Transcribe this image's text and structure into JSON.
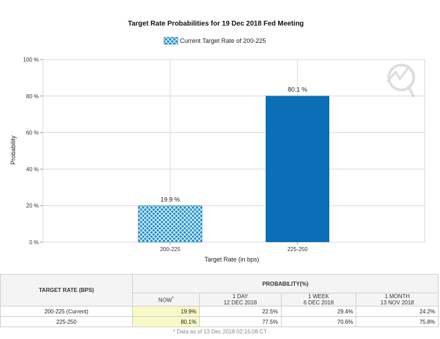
{
  "chart_data": {
    "type": "bar",
    "title": "Target Rate Probabilities for 19 Dec 2018 Fed Meeting",
    "legend": "Current Target Rate of 200-225",
    "xlabel": "Target Rate (in bps)",
    "ylabel": "Probability",
    "categories": [
      "200-225",
      "225-250"
    ],
    "values": [
      19.9,
      80.1
    ],
    "value_labels": [
      "19.9 %",
      "80.1 %"
    ],
    "ylim": [
      0,
      100
    ],
    "yticks": [
      0,
      20,
      40,
      60,
      80,
      100
    ],
    "ytick_labels": [
      "0 %",
      "20 %",
      "40 %",
      "60 %",
      "80 %",
      "100 %"
    ],
    "highlight_category": "200-225",
    "colors": {
      "current": "#1a8fd0",
      "other": "#0a6fb6",
      "grid": "#d8d8d8"
    }
  },
  "table": {
    "target_header": "TARGET RATE (BPS)",
    "prob_header": "PROBABILITY(%)",
    "now_label": "NOW",
    "now_mark": "*",
    "columns": [
      {
        "line1": "1 DAY",
        "line2": "12 DEC 2018"
      },
      {
        "line1": "1 WEEK",
        "line2": "6 DEC 2018"
      },
      {
        "line1": "1 MONTH",
        "line2": "13 NOV 2018"
      }
    ],
    "rows": [
      {
        "rate": "200-225 (Current)",
        "now": "19.9%",
        "d1": "22.5%",
        "w1": "29.4%",
        "m1": "24.2%"
      },
      {
        "rate": "225-250",
        "now": "80.1%",
        "d1": "77.5%",
        "w1": "70.6%",
        "m1": "75.8%"
      }
    ],
    "footnote": "* Data as of 13 Dec 2018 02:15:08 CT"
  }
}
